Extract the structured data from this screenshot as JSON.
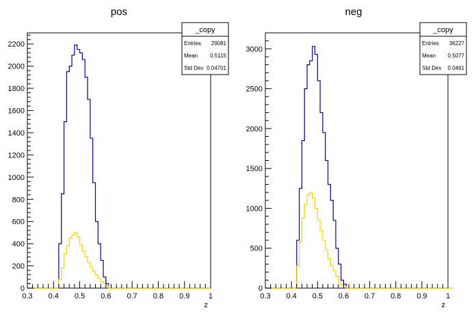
{
  "chart_data": [
    {
      "type": "histogram",
      "title": "pos",
      "xlabel": "z",
      "ylabel": "",
      "xlim": [
        0.3,
        1.0
      ],
      "ylim": [
        0,
        2300
      ],
      "x_ticks": [
        "0.3",
        "0.4",
        "0.5",
        "0.6",
        "0.7",
        "0.8",
        "0.9",
        "1"
      ],
      "y_ticks": [
        "0",
        "200",
        "400",
        "600",
        "800",
        "1000",
        "1200",
        "1400",
        "1600",
        "1800",
        "2000",
        "2200"
      ],
      "bin_edges_start": 0.3,
      "bin_width": 0.01,
      "series": [
        {
          "name": "",
          "color": "#000080",
          "values": [
            0,
            0,
            0,
            0,
            0,
            0,
            0,
            0,
            0,
            0,
            0,
            0,
            400,
            850,
            1500,
            1950,
            2000,
            2100,
            2190,
            2150,
            2120,
            2060,
            1900,
            1700,
            1350,
            950,
            600,
            400,
            250,
            100,
            40,
            0,
            0,
            0,
            0,
            0,
            0,
            0,
            0,
            0,
            0,
            0,
            0,
            0,
            0,
            0,
            0,
            0,
            0,
            0,
            0,
            0,
            0,
            0,
            0,
            0,
            0,
            0,
            0,
            0,
            0,
            0,
            0,
            0,
            0,
            0,
            0,
            0,
            0,
            0
          ]
        },
        {
          "name": "",
          "color": "#ffcc00",
          "values": [
            0,
            0,
            0,
            0,
            0,
            0,
            0,
            0,
            0,
            0,
            0,
            0,
            80,
            180,
            310,
            380,
            450,
            480,
            500,
            460,
            390,
            330,
            280,
            230,
            190,
            150,
            120,
            90,
            60,
            40,
            20,
            0,
            0,
            0,
            0,
            0,
            0,
            0,
            0,
            0,
            0,
            0,
            0,
            0,
            0,
            0,
            0,
            0,
            0,
            0,
            0,
            0,
            0,
            0,
            0,
            0,
            0,
            0,
            0,
            0,
            0,
            0,
            0,
            0,
            0,
            0,
            0,
            0,
            0,
            0
          ]
        }
      ],
      "stats": {
        "title": "_copy",
        "rows": [
          {
            "label": "Entries",
            "value": "29081"
          },
          {
            "label": "Mean",
            "value": "0.5115"
          },
          {
            "label": "Std Dev",
            "value": "0.04701"
          }
        ]
      }
    },
    {
      "type": "histogram",
      "title": "neg",
      "xlabel": "z",
      "ylabel": "",
      "xlim": [
        0.3,
        1.0
      ],
      "ylim": [
        0,
        3200
      ],
      "x_ticks": [
        "0.3",
        "0.4",
        "0.5",
        "0.6",
        "0.7",
        "0.8",
        "0.9",
        "1"
      ],
      "y_ticks": [
        "0",
        "500",
        "1000",
        "1500",
        "2000",
        "2500",
        "3000"
      ],
      "bin_edges_start": 0.3,
      "bin_width": 0.01,
      "series": [
        {
          "name": "",
          "color": "#000080",
          "values": [
            0,
            0,
            0,
            0,
            0,
            0,
            0,
            0,
            0,
            0,
            0,
            0,
            600,
            1250,
            1850,
            2500,
            2800,
            2850,
            3030,
            2930,
            2600,
            2200,
            1950,
            1600,
            1300,
            1100,
            850,
            500,
            300,
            100,
            50,
            0,
            0,
            0,
            0,
            0,
            0,
            0,
            0,
            0,
            0,
            0,
            0,
            0,
            0,
            0,
            0,
            0,
            0,
            0,
            0,
            0,
            0,
            0,
            0,
            0,
            0,
            0,
            0,
            0,
            0,
            0,
            0,
            0,
            0,
            0,
            0,
            0,
            0,
            0
          ]
        },
        {
          "name": "",
          "color": "#ffcc00",
          "values": [
            0,
            0,
            0,
            0,
            0,
            0,
            0,
            0,
            0,
            0,
            0,
            0,
            280,
            580,
            880,
            1050,
            1170,
            1200,
            1130,
            1000,
            850,
            720,
            600,
            480,
            370,
            280,
            220,
            150,
            80,
            40,
            20,
            0,
            0,
            0,
            0,
            0,
            0,
            0,
            0,
            0,
            0,
            0,
            0,
            0,
            0,
            0,
            0,
            0,
            0,
            0,
            0,
            0,
            0,
            0,
            0,
            0,
            0,
            0,
            0,
            0,
            0,
            0,
            0,
            0,
            0,
            0,
            0,
            0,
            0,
            0,
            0,
            0
          ]
        }
      ],
      "stats": {
        "title": "_copy",
        "rows": [
          {
            "label": "Entries",
            "value": "36227"
          },
          {
            "label": "Mean",
            "value": "0.5077"
          },
          {
            "label": "Std Dev",
            "value": "0.0461"
          }
        ]
      }
    }
  ]
}
